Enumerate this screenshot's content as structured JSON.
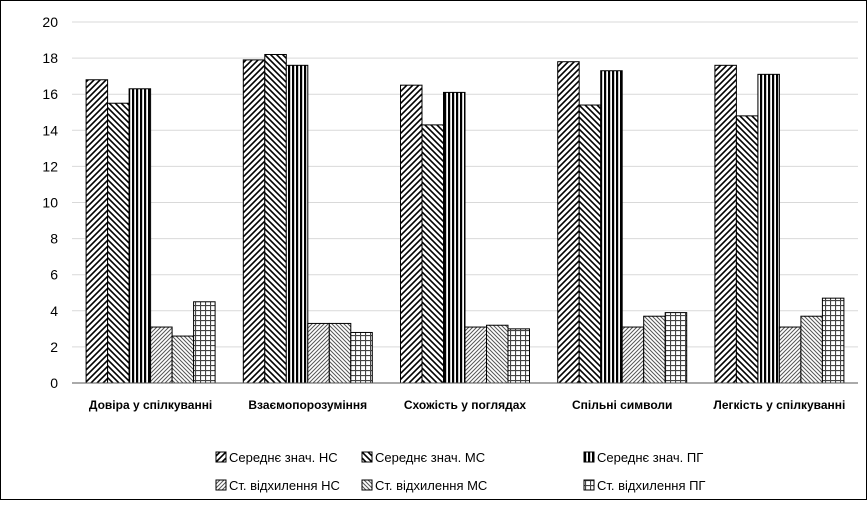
{
  "chart_data": {
    "type": "bar",
    "categories": [
      "Довіра у спілкуванні",
      "Взаємопорозуміння",
      "Схожість у поглядах",
      "Спільні символи",
      "Легкість у спілкуванні"
    ],
    "series": [
      {
        "name": "Середнє знач. НС",
        "values": [
          16.8,
          17.9,
          16.5,
          17.8,
          17.6
        ],
        "pattern": "diag-fwd"
      },
      {
        "name": "Середнє знач. МС",
        "values": [
          15.5,
          18.2,
          14.3,
          15.4,
          14.8
        ],
        "pattern": "diag-back"
      },
      {
        "name": "Середнє знач. ПГ",
        "values": [
          16.3,
          17.6,
          16.1,
          17.3,
          17.1
        ],
        "pattern": "vertical"
      },
      {
        "name": "Ст. відхилення НС",
        "values": [
          3.1,
          3.3,
          3.1,
          3.1,
          3.1
        ],
        "pattern": "fine-fwd"
      },
      {
        "name": "Ст. відхилення МС",
        "values": [
          2.6,
          3.3,
          3.2,
          3.7,
          3.7
        ],
        "pattern": "fine-back"
      },
      {
        "name": "Ст. відхилення ПГ",
        "values": [
          4.5,
          2.8,
          3.0,
          3.9,
          4.7
        ],
        "pattern": "grid"
      }
    ],
    "yticks": [
      0,
      2,
      4,
      6,
      8,
      10,
      12,
      14,
      16,
      18,
      20
    ],
    "ylim": [
      0,
      20
    ],
    "grid": true,
    "legend_position": "bottom",
    "title": "",
    "xlabel": "",
    "ylabel": ""
  }
}
